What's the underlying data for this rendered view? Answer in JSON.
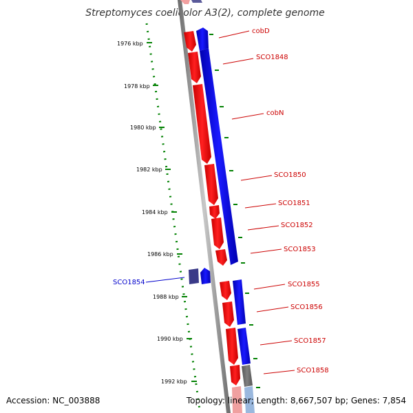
{
  "title": "Streptomyces coelicolor A3(2), complete genome",
  "accession": "Accession: NC_003888",
  "summary": "Topology: linear; Length: 8,667,507 bp; Genes: 7,854",
  "scale_labels": [
    "1976 kbp",
    "1978 kbp",
    "1980 kbp",
    "1982 kbp",
    "1984 kbp",
    "1986 kbp",
    "1988 kbp",
    "1990 kbp",
    "1992 kbp"
  ],
  "gene_labels": [
    {
      "text": "cobD",
      "color": "#cc0000"
    },
    {
      "text": "SCO1848",
      "color": "#cc0000"
    },
    {
      "text": "cobN",
      "color": "#cc0000"
    },
    {
      "text": "SCO1850",
      "color": "#cc0000"
    },
    {
      "text": "SCO1851",
      "color": "#cc0000"
    },
    {
      "text": "SCO1852",
      "color": "#cc0000"
    },
    {
      "text": "SCO1853",
      "color": "#cc0000"
    },
    {
      "text": "SCO1855",
      "color": "#cc0000"
    },
    {
      "text": "SCO1856",
      "color": "#cc0000"
    },
    {
      "text": "SCO1857",
      "color": "#cc0000"
    },
    {
      "text": "SCO1858",
      "color": "#cc0000"
    },
    {
      "text": "SCO1854",
      "color": "#0000cc"
    }
  ],
  "colors": {
    "forward_gene": "#ff0000",
    "reverse_gene": "#0000ff",
    "other_gene": "#707070",
    "backbone": "#9a9a9a",
    "scale_dots": "#008000",
    "label_red": "#cc0000",
    "label_blue": "#0000cc"
  }
}
